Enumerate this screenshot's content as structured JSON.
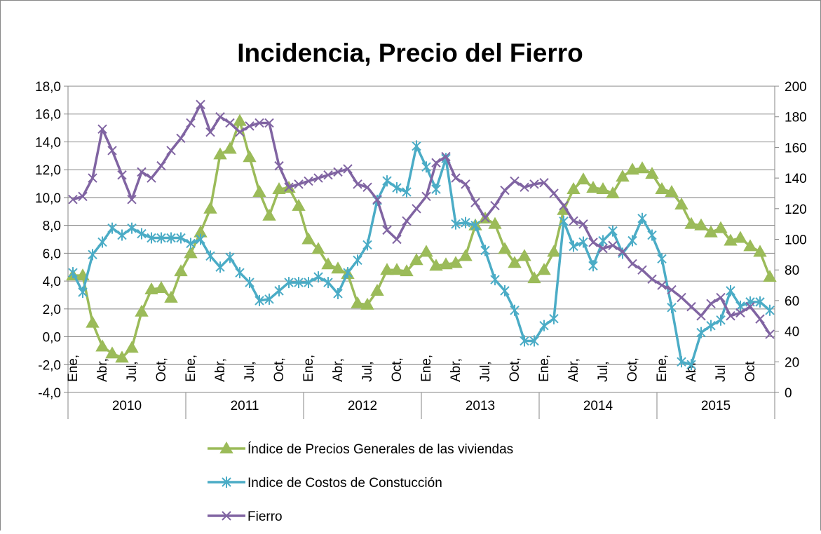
{
  "chart_data": {
    "type": "line",
    "title": "Incidencia, Precio del Fierro",
    "categories": [
      "Ene,",
      null,
      null,
      "Abr,",
      null,
      null,
      "Jul,",
      null,
      null,
      "Oct,",
      null,
      null,
      "Ene,",
      null,
      null,
      "Abr,",
      null,
      null,
      "Jul,",
      null,
      null,
      "Oct,",
      null,
      null,
      "Ene,",
      null,
      null,
      "Abr,",
      null,
      null,
      "Jul,",
      null,
      null,
      "Oct,",
      null,
      null,
      "Ene,",
      null,
      null,
      "Abr,",
      null,
      null,
      "Jul,",
      null,
      null,
      "Oct,",
      null,
      null,
      "Ene,",
      null,
      null,
      "Abr,",
      null,
      null,
      "Jul,",
      null,
      null,
      "Oct,",
      null,
      null,
      "Ene,",
      null,
      null,
      "Abr",
      null,
      null,
      "Jul",
      null,
      null,
      "Oct",
      null,
      null
    ],
    "years": [
      "2010",
      "2011",
      "2012",
      "2013",
      "2014",
      "2015"
    ],
    "series": [
      {
        "name": "Índice de Precios Generales de las viviendas",
        "color": "#9bbb59",
        "marker": "triangle",
        "values": [
          4.4,
          4.4,
          1.0,
          -0.7,
          -1.2,
          -1.5,
          -0.8,
          1.8,
          3.4,
          3.5,
          2.8,
          4.7,
          6.0,
          7.5,
          9.2,
          13.1,
          13.5,
          15.5,
          12.9,
          10.4,
          8.7,
          10.6,
          10.7,
          9.4,
          7.0,
          6.3,
          5.2,
          4.9,
          4.5,
          2.4,
          2.3,
          3.3,
          4.8,
          4.8,
          4.7,
          5.5,
          6.1,
          5.1,
          5.2,
          5.3,
          5.8,
          8.0,
          8.5,
          8.1,
          6.3,
          5.3,
          5.8,
          4.2,
          4.8,
          6.1,
          9.1,
          10.6,
          11.3,
          10.7,
          10.6,
          10.3,
          11.5,
          12.0,
          12.1,
          11.7,
          10.6,
          10.4,
          9.5,
          8.1,
          8.0,
          7.5,
          7.8,
          6.9,
          7.1,
          6.5,
          6.1,
          4.3
        ]
      },
      {
        "name": "Indice de Costos de Constucción",
        "color": "#4bacc6",
        "marker": "asterisk",
        "values": [
          4.6,
          3.2,
          5.9,
          6.8,
          7.8,
          7.3,
          7.8,
          7.4,
          7.1,
          7.1,
          7.1,
          7.1,
          6.7,
          7.0,
          5.8,
          5.0,
          5.7,
          4.6,
          3.9,
          2.6,
          2.7,
          3.3,
          3.9,
          3.9,
          3.9,
          4.3,
          3.9,
          3.1,
          4.6,
          5.5,
          6.6,
          9.8,
          11.2,
          10.7,
          10.4,
          13.7,
          12.2,
          10.6,
          12.8,
          8.1,
          8.2,
          8.0,
          6.2,
          4.1,
          3.3,
          1.9,
          -0.3,
          -0.3,
          0.8,
          1.3,
          8.3,
          6.5,
          6.8,
          5.1,
          6.9,
          7.6,
          6.0,
          6.9,
          8.5,
          7.3,
          5.6,
          2.1,
          -1.8,
          -2.0,
          0.3,
          0.8,
          1.2,
          3.3,
          2.2,
          2.5,
          2.5,
          1.9
        ]
      },
      {
        "name": "Fierro",
        "color": "#8064a2",
        "marker": "x",
        "axis": "y2",
        "values": [
          126,
          128,
          140,
          172,
          158,
          142,
          126,
          144,
          140,
          148,
          158,
          166,
          176,
          188,
          170,
          180,
          176,
          170,
          174,
          176,
          176,
          148,
          134,
          136,
          138,
          140,
          142,
          144,
          146,
          136,
          134,
          126,
          106,
          100,
          112,
          120,
          128,
          150,
          154,
          140,
          136,
          124,
          114,
          122,
          132,
          138,
          134,
          136,
          137,
          130,
          122,
          112,
          110,
          98,
          94,
          96,
          92,
          84,
          80,
          74,
          70,
          67,
          62,
          56,
          50,
          58,
          62,
          50,
          52,
          56,
          48,
          38
        ]
      }
    ],
    "ylim": [
      -4,
      18
    ],
    "yticks": [
      {
        "value": -4,
        "label": "-4,0"
      },
      {
        "value": -2,
        "label": "-2,0"
      },
      {
        "value": 0,
        "label": "0,0"
      },
      {
        "value": 2,
        "label": "2,0"
      },
      {
        "value": 4,
        "label": "4,0"
      },
      {
        "value": 6,
        "label": "6,0"
      },
      {
        "value": 8,
        "label": "8,0"
      },
      {
        "value": 10,
        "label": "10,0"
      },
      {
        "value": 12,
        "label": "12,0"
      },
      {
        "value": 14,
        "label": "14,0"
      },
      {
        "value": 16,
        "label": "16,0"
      },
      {
        "value": 18,
        "label": "18,0"
      }
    ],
    "y2lim": [
      0,
      200
    ],
    "y2ticks": [
      0,
      20,
      40,
      60,
      80,
      100,
      120,
      140,
      160,
      180,
      200
    ],
    "grid": true,
    "legend": "bottom"
  }
}
